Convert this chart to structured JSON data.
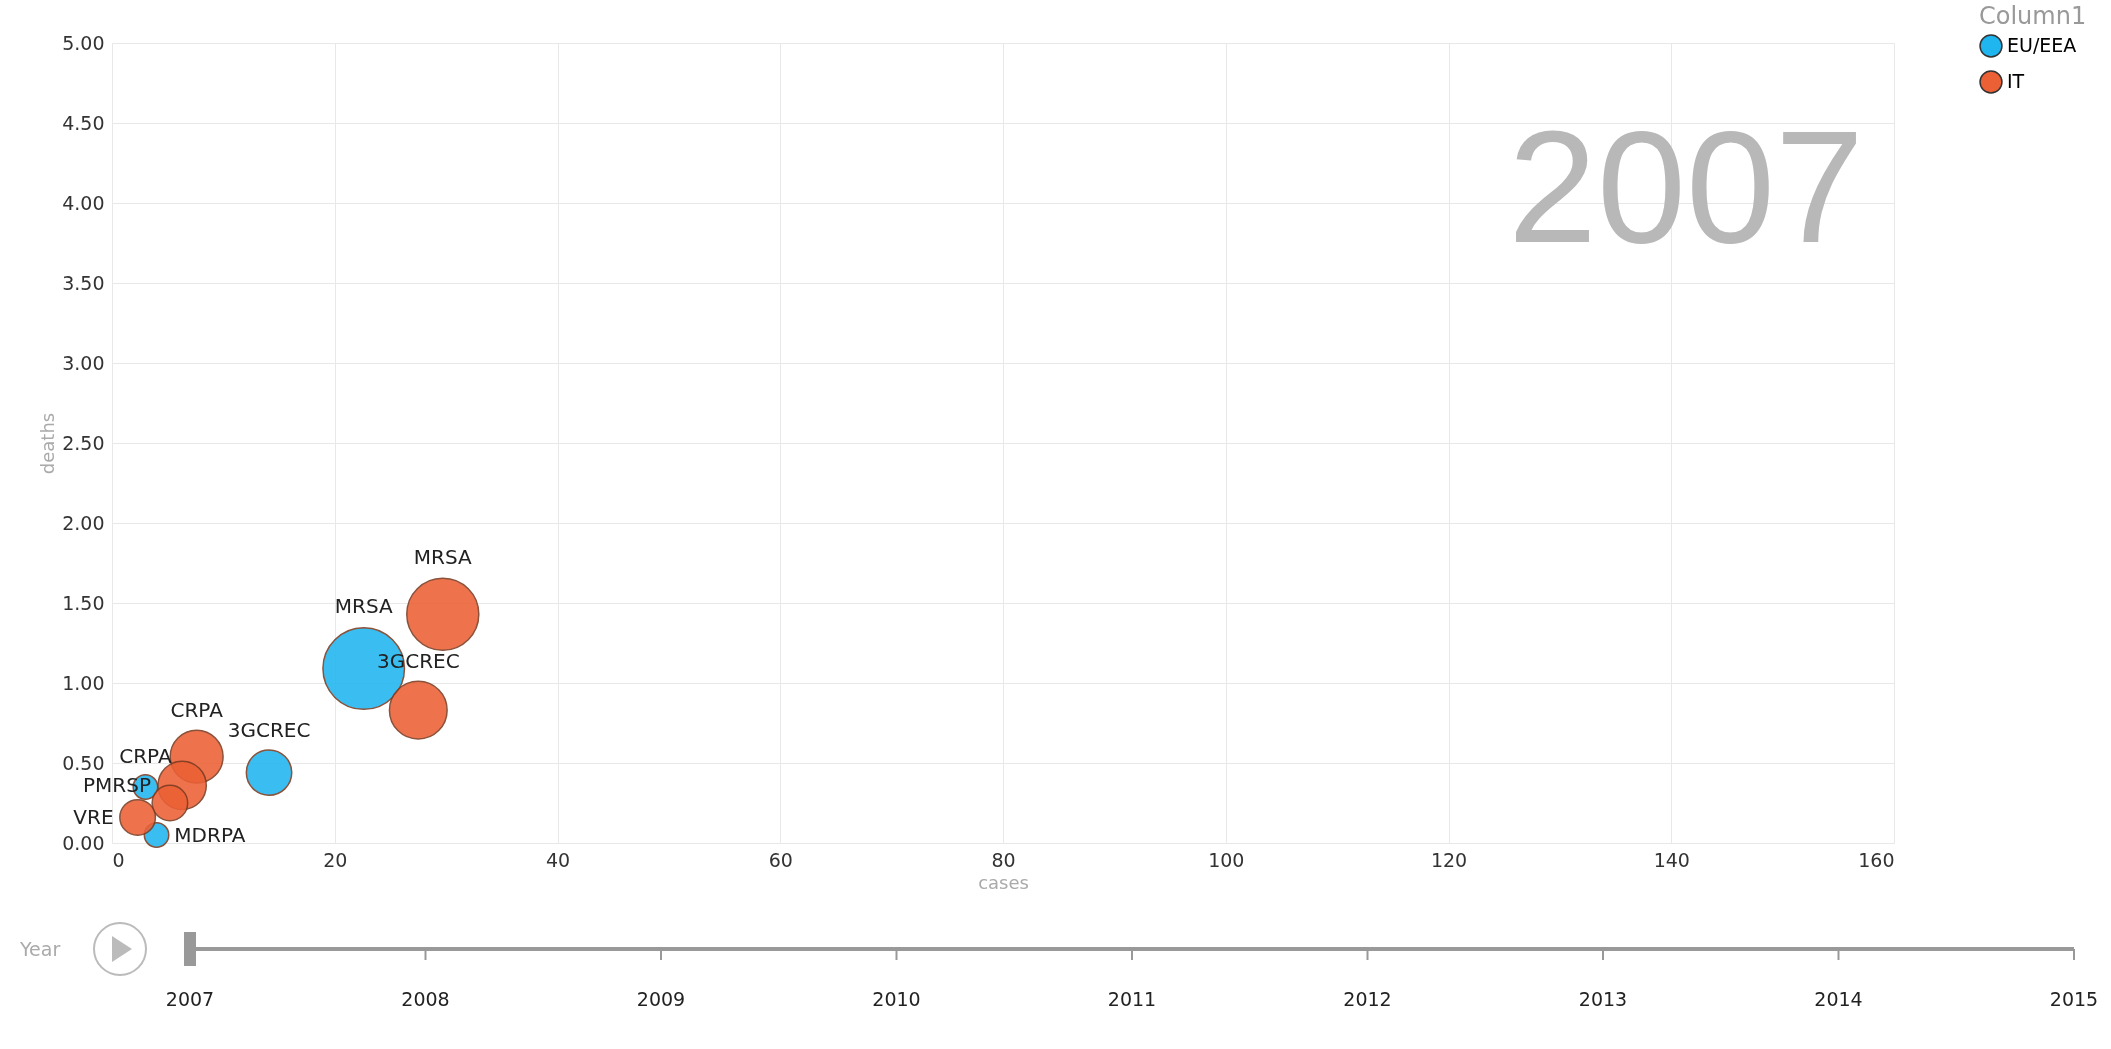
{
  "chart_data": {
    "type": "bubble",
    "xlabel": "cases",
    "ylabel": "deaths",
    "legend_title": "Column1",
    "legend": "top right",
    "grid": true,
    "xlim": [
      0,
      160
    ],
    "xticks": [
      0,
      20,
      40,
      60,
      80,
      100,
      120,
      140,
      160
    ],
    "ylim": [
      0,
      5
    ],
    "yticks": [
      {
        "value": 0,
        "label": "0.00"
      },
      {
        "value": 0.5,
        "label": "0.50"
      },
      {
        "value": 1,
        "label": "1.00"
      },
      {
        "value": 1.5,
        "label": "1.50"
      },
      {
        "value": 2,
        "label": "2.00"
      },
      {
        "value": 2.5,
        "label": "2.50"
      },
      {
        "value": 3,
        "label": "3.00"
      },
      {
        "value": 3.5,
        "label": "3.50"
      },
      {
        "value": 4,
        "label": "4.00"
      },
      {
        "value": 4.5,
        "label": "4.50"
      },
      {
        "value": 5,
        "label": "5.00"
      }
    ],
    "series": [
      {
        "name": "EU/EEA",
        "color": "#1fb6f0",
        "x": [
          22.6,
          14.1,
          3.0,
          4.0
        ],
        "values": [
          1.09,
          0.44,
          0.35,
          0.05
        ],
        "sizes": [
          1,
          0.31,
          0.09,
          0.09
        ]
      },
      {
        "name": "IT",
        "color": "#ec6035",
        "x": [
          29.7,
          27.5,
          7.6,
          6.3,
          5.2,
          2.3
        ],
        "values": [
          1.43,
          0.83,
          0.54,
          0.36,
          0.25,
          0.16
        ],
        "sizes": [
          0.78,
          0.5,
          0.42,
          0.35,
          0.19,
          0.19
        ]
      }
    ],
    "annotations": [
      "2007",
      "Year",
      "2007",
      "2008",
      "2009",
      "2010",
      "2011",
      "2012",
      "2013",
      "2014",
      "2015",
      {
        "text": "MRSA",
        "x": 22.6,
        "y": 1.09
      },
      {
        "text": "MRSA",
        "x": 29.7,
        "y": 1.43
      },
      {
        "text": "3GCREC",
        "x": 27.5,
        "y": 0.83
      },
      {
        "text": "3GCREC",
        "x": 14.1,
        "y": 0.44
      },
      {
        "text": "CRPA",
        "x": 7.6,
        "y": 0.54
      },
      {
        "text": "CRPA",
        "x": 3.0,
        "y": 0.35
      },
      {
        "text": "PMRSP",
        "x": 6.3,
        "y": 0.36
      },
      {
        "text": "VRE",
        "x": 2.3,
        "y": 0.16
      },
      {
        "text": "MDRPA",
        "x": 4.0,
        "y": 0.05
      }
    ]
  }
}
